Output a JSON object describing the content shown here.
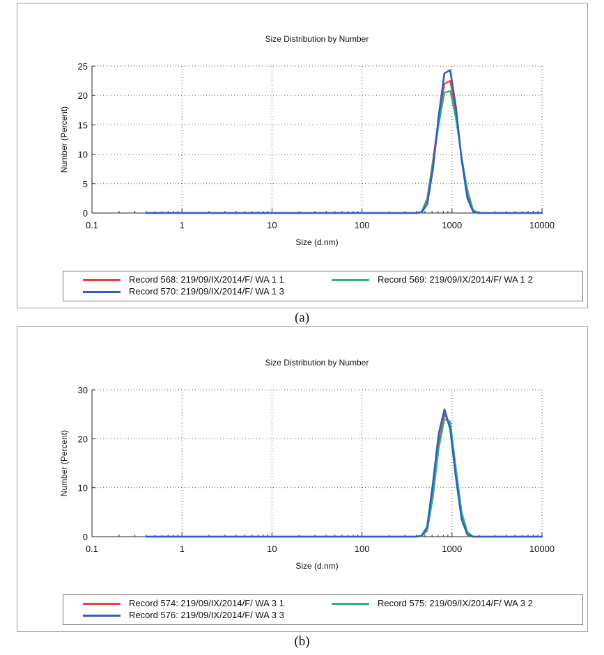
{
  "chart_data": [
    {
      "type": "line",
      "panel_label": "(a)",
      "title": "Size Distribution by Number",
      "xlabel": "Size (d.nm)",
      "ylabel": "Number (Percent)",
      "xscale": "log",
      "xlim": [
        0.1,
        10000
      ],
      "ylim": [
        0,
        25
      ],
      "xticks": [
        0.1,
        1,
        10,
        100,
        1000,
        10000
      ],
      "xtick_labels": [
        "0.1",
        "1",
        "10",
        "100",
        "1000",
        "10000"
      ],
      "yticks": [
        0,
        5,
        10,
        15,
        20,
        25
      ],
      "ytick_labels": [
        "0",
        "5",
        "10",
        "15",
        "20",
        "25"
      ],
      "grid": true,
      "legend_position": "bottom",
      "series": [
        {
          "name": "Record 568: 219/09/IX/2014/F/ WA 1 1",
          "color": "#e8413a",
          "x": [
            0.4,
            400,
            460,
            530,
            615,
            712,
            825,
            955,
            1106,
            1281,
            1484,
            1718,
            1990,
            10000
          ],
          "y": [
            0,
            0,
            0.2,
            2.5,
            9,
            16,
            22,
            22.5,
            17,
            9,
            3,
            0.3,
            0,
            0
          ]
        },
        {
          "name": "Record 569: 219/09/IX/2014/F/ WA 1 2",
          "color": "#2db57a",
          "x": [
            0.4,
            400,
            460,
            530,
            615,
            712,
            825,
            955,
            1106,
            1281,
            1484,
            1718,
            1990,
            10000
          ],
          "y": [
            0,
            0,
            0.2,
            2.3,
            8.5,
            15,
            20.5,
            20.8,
            16,
            9.5,
            4,
            0.5,
            0,
            0
          ]
        },
        {
          "name": "Record 570: 219/09/IX/2014/F/ WA 1 3",
          "color": "#2f5fbf",
          "x": [
            0.4,
            400,
            460,
            530,
            615,
            712,
            825,
            955,
            1106,
            1281,
            1484,
            1718,
            1990,
            10000
          ],
          "y": [
            0,
            0,
            0.1,
            1.5,
            7.5,
            16.5,
            23.8,
            24.3,
            18,
            9,
            2.5,
            0.2,
            0,
            0
          ]
        }
      ]
    },
    {
      "type": "line",
      "panel_label": "(b)",
      "title": "Size Distribution by Number",
      "xlabel": "Size (d.nm)",
      "ylabel": "Number (Percent)",
      "xscale": "log",
      "xlim": [
        0.1,
        10000
      ],
      "ylim": [
        0,
        30
      ],
      "xticks": [
        0.1,
        1,
        10,
        100,
        1000,
        10000
      ],
      "xtick_labels": [
        "0.1",
        "1",
        "10",
        "100",
        "1000",
        "10000"
      ],
      "yticks": [
        0,
        10,
        20,
        30
      ],
      "ytick_labels": [
        "0",
        "10",
        "20",
        "30"
      ],
      "grid": true,
      "legend_position": "bottom",
      "series": [
        {
          "name": "Record 574: 219/09/IX/2014/F/ WA 3 1",
          "color": "#e8413a",
          "x": [
            0.4,
            400,
            460,
            530,
            615,
            712,
            825,
            955,
            1106,
            1281,
            1484,
            1718,
            10000
          ],
          "y": [
            0,
            0,
            0.1,
            1.5,
            9,
            19,
            25,
            23,
            13,
            4,
            0.5,
            0,
            0
          ]
        },
        {
          "name": "Record 575: 219/09/IX/2014/F/ WA 3 2",
          "color": "#2db57a",
          "x": [
            0.4,
            400,
            460,
            530,
            615,
            712,
            825,
            955,
            1106,
            1281,
            1484,
            1718,
            10000
          ],
          "y": [
            0,
            0,
            0.1,
            1.2,
            8,
            18,
            24,
            23.5,
            14,
            5,
            1,
            0,
            0
          ]
        },
        {
          "name": "Record 576: 219/09/IX/2014/F/ WA 3 3",
          "color": "#2f5fbf",
          "x": [
            0.4,
            400,
            460,
            530,
            615,
            712,
            825,
            955,
            1106,
            1281,
            1484,
            1718,
            10000
          ],
          "y": [
            0,
            0,
            0.2,
            2,
            11,
            21,
            26,
            22,
            12,
            3.5,
            0.4,
            0,
            0
          ]
        }
      ]
    }
  ]
}
